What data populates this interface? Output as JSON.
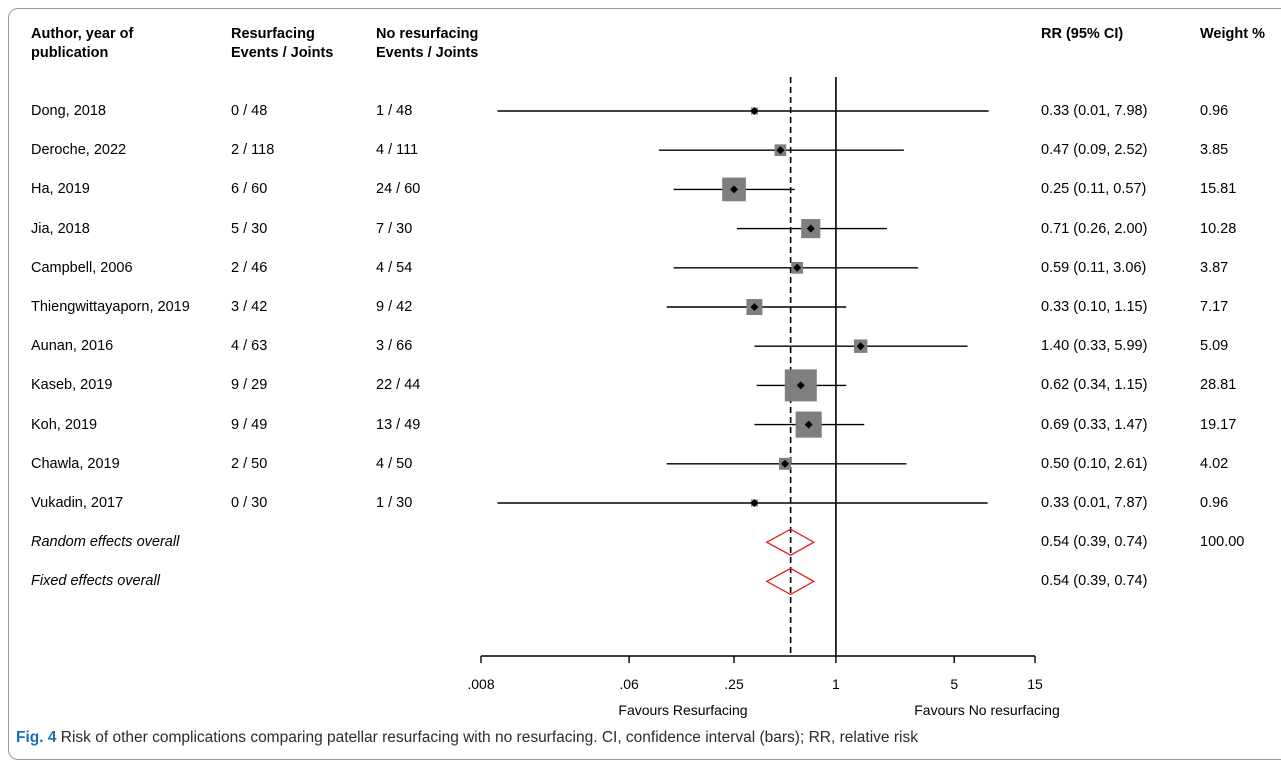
{
  "headers": {
    "study": "Author, year of publication",
    "resurfacing": "Resurfacing Events / Joints",
    "no_resurfacing": "No resurfacing Events / Joints",
    "rr": "RR (95% CI)",
    "weight": "Weight %"
  },
  "caption": {
    "label": "Fig. 4",
    "text": "Risk of other complications comparing patellar resurfacing with no resurfacing. CI, confidence interval (bars); RR, relative risk"
  },
  "chart_data": {
    "type": "forest",
    "scale": "log",
    "xlim": [
      0.008,
      15
    ],
    "ticks": [
      ".008",
      ".06",
      ".25",
      "1",
      "5",
      "15"
    ],
    "tick_values": [
      0.008,
      0.06,
      0.25,
      1,
      5,
      15
    ],
    "null_line": 1,
    "pooled_line": 0.54,
    "xlabel_left": "Favours Resurfacing",
    "xlabel_right": "Favours No resurfacing",
    "studies": [
      {
        "label": "Dong, 2018",
        "resurf": "0 / 48",
        "noresurf": "1 / 48",
        "rr_text": "0.33 (0.01, 7.98)",
        "weight_text": "0.96",
        "rr": 0.33,
        "lo": 0.01,
        "hi": 7.98,
        "weight": 0.96
      },
      {
        "label": "Deroche, 2022",
        "resurf": "2 / 118",
        "noresurf": "4 / 111",
        "rr_text": "0.47 (0.09, 2.52)",
        "weight_text": "3.85",
        "rr": 0.47,
        "lo": 0.09,
        "hi": 2.52,
        "weight": 3.85
      },
      {
        "label": "Ha, 2019",
        "resurf": "6 / 60",
        "noresurf": "24 / 60",
        "rr_text": "0.25 (0.11, 0.57)",
        "weight_text": "15.81",
        "rr": 0.25,
        "lo": 0.11,
        "hi": 0.57,
        "weight": 15.81
      },
      {
        "label": "Jia, 2018",
        "resurf": "5 / 30",
        "noresurf": "7 / 30",
        "rr_text": "0.71 (0.26, 2.00)",
        "weight_text": "10.28",
        "rr": 0.71,
        "lo": 0.26,
        "hi": 2.0,
        "weight": 10.28
      },
      {
        "label": "Campbell, 2006",
        "resurf": "2 / 46",
        "noresurf": "4 / 54",
        "rr_text": "0.59 (0.11, 3.06)",
        "weight_text": "3.87",
        "rr": 0.59,
        "lo": 0.11,
        "hi": 3.06,
        "weight": 3.87
      },
      {
        "label": "Thiengwittayaporn, 2019",
        "resurf": "3 / 42",
        "noresurf": "9 / 42",
        "rr_text": "0.33 (0.10, 1.15)",
        "weight_text": "7.17",
        "rr": 0.33,
        "lo": 0.1,
        "hi": 1.15,
        "weight": 7.17
      },
      {
        "label": "Aunan, 2016",
        "resurf": "4 / 63",
        "noresurf": "3 / 66",
        "rr_text": "1.40 (0.33, 5.99)",
        "weight_text": "5.09",
        "rr": 1.4,
        "lo": 0.33,
        "hi": 5.99,
        "weight": 5.09
      },
      {
        "label": "Kaseb, 2019",
        "resurf": "9 / 29",
        "noresurf": "22 / 44",
        "rr_text": "0.62 (0.34, 1.15)",
        "weight_text": "28.81",
        "rr": 0.62,
        "lo": 0.34,
        "hi": 1.15,
        "weight": 28.81
      },
      {
        "label": "Koh, 2019",
        "resurf": "9 / 49",
        "noresurf": "13 / 49",
        "rr_text": "0.69 (0.33, 1.47)",
        "weight_text": "19.17",
        "rr": 0.69,
        "lo": 0.33,
        "hi": 1.47,
        "weight": 19.17
      },
      {
        "label": "Chawla, 2019",
        "resurf": "2 / 50",
        "noresurf": "4 / 50",
        "rr_text": "0.50 (0.10, 2.61)",
        "weight_text": "4.02",
        "rr": 0.5,
        "lo": 0.1,
        "hi": 2.61,
        "weight": 4.02
      },
      {
        "label": "Vukadin, 2017",
        "resurf": "0 / 30",
        "noresurf": "1 / 30",
        "rr_text": "0.33 (0.01, 7.87)",
        "weight_text": "0.96",
        "rr": 0.33,
        "lo": 0.01,
        "hi": 7.87,
        "weight": 0.96
      }
    ],
    "overall": [
      {
        "label": "Random effects overall",
        "rr_text": "0.54 (0.39, 0.74)",
        "weight_text": "100.00",
        "rr": 0.54,
        "lo": 0.39,
        "hi": 0.74,
        "color": "#e0201c"
      },
      {
        "label": "Fixed effects overall",
        "rr_text": "0.54 (0.39, 0.74)",
        "weight_text": "",
        "rr": 0.54,
        "lo": 0.39,
        "hi": 0.74,
        "color": "#e0201c"
      }
    ],
    "box_color": "#7f7f7f",
    "point_color": "#000000"
  }
}
